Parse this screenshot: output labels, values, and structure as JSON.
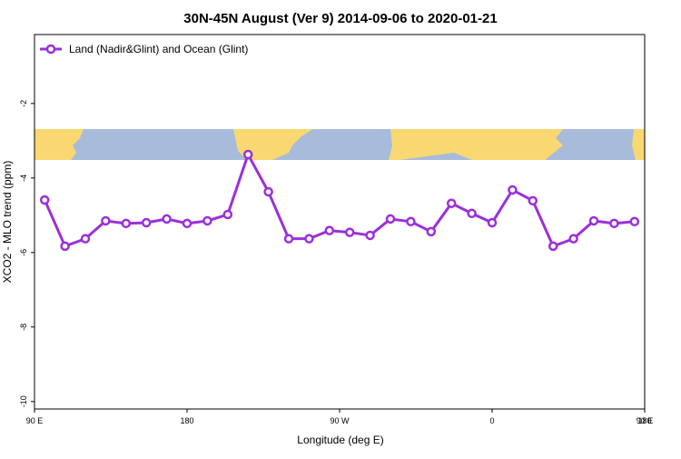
{
  "chart_data": {
    "type": "line",
    "title": "30N-45N August (Ver 9)   2014-09-06 to 2020-01-21",
    "xlabel": "Longitude (deg E)",
    "ylabel": "XCO2 - MLO trend (ppm)",
    "x": [
      96,
      108,
      120,
      132,
      144,
      156,
      168,
      180,
      192,
      204,
      216,
      228,
      240,
      252,
      264,
      276,
      288,
      300,
      312,
      324,
      336,
      348,
      360,
      372,
      384,
      396,
      408,
      420,
      432,
      444
    ],
    "series": [
      {
        "name": "Land (Nadir&Glint) and Ocean (Glint)",
        "color": "#9b30d9",
        "values": [
          -4.59,
          -5.83,
          -5.63,
          -5.15,
          -5.22,
          -5.2,
          -5.1,
          -5.22,
          -5.15,
          -4.98,
          -3.37,
          -4.37,
          -5.63,
          -5.63,
          -5.41,
          -5.46,
          -5.54,
          -5.1,
          -5.17,
          -5.44,
          -4.68,
          -4.95,
          -5.2,
          -4.32,
          -4.61,
          -5.83,
          -5.63,
          -5.15,
          -5.22,
          -5.17
        ]
      }
    ],
    "xlim": [
      90,
      450
    ],
    "xticks": [
      {
        "value": 90,
        "label": "90 E"
      },
      180,
      {
        "value": 270,
        "label": "90 W"
      },
      {
        "value": 360,
        "label": "0"
      },
      {
        "value": 450,
        "label": "90 E"
      },
      {
        "value": 540,
        "label": "180"
      }
    ],
    "ylim": [
      -10.2,
      -0.15
    ],
    "yticks": [
      -10,
      -8,
      -6,
      -4,
      -2
    ],
    "legend": "top-left"
  }
}
